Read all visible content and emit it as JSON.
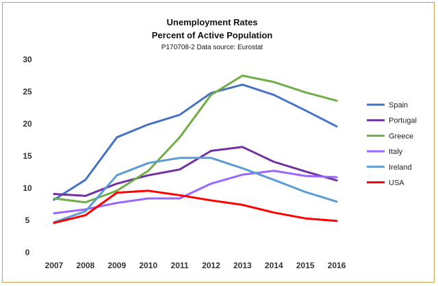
{
  "chart_data": {
    "type": "line",
    "title": "Unemployment Rates",
    "subtitle_line": "Percent of Active Population",
    "source_note": "P170708-2 Data source: Eurostat",
    "x": [
      "2007",
      "2008",
      "2009",
      "2010",
      "2011",
      "2012",
      "2013",
      "2014",
      "2015",
      "2016"
    ],
    "ylim": [
      0,
      30
    ],
    "yticks": [
      "0",
      "5",
      "10",
      "15",
      "20",
      "25",
      "30"
    ],
    "grid": false,
    "legend_position": "right",
    "series": [
      {
        "name": "Spain",
        "color": "#4472c4",
        "values": [
          8.2,
          11.3,
          17.9,
          19.9,
          21.4,
          24.8,
          26.1,
          24.5,
          22.1,
          19.6
        ]
      },
      {
        "name": "Portugal",
        "color": "#7030a0",
        "values": [
          9.1,
          8.8,
          10.7,
          12.0,
          12.9,
          15.8,
          16.4,
          14.1,
          12.6,
          11.2
        ]
      },
      {
        "name": "Greece",
        "color": "#70ad47",
        "values": [
          8.4,
          7.8,
          9.6,
          12.7,
          17.9,
          24.5,
          27.5,
          26.5,
          24.9,
          23.6
        ]
      },
      {
        "name": "Italy",
        "color": "#9966ff",
        "values": [
          6.1,
          6.7,
          7.7,
          8.4,
          8.4,
          10.7,
          12.1,
          12.7,
          11.9,
          11.7
        ]
      },
      {
        "name": "Ireland",
        "color": "#5b9bd5",
        "values": [
          4.7,
          6.4,
          12.0,
          13.9,
          14.7,
          14.7,
          13.1,
          11.3,
          9.4,
          7.9
        ]
      },
      {
        "name": "USA",
        "color": "#ff0000",
        "values": [
          4.6,
          5.8,
          9.3,
          9.6,
          8.9,
          8.1,
          7.4,
          6.2,
          5.3,
          4.9
        ]
      }
    ]
  }
}
